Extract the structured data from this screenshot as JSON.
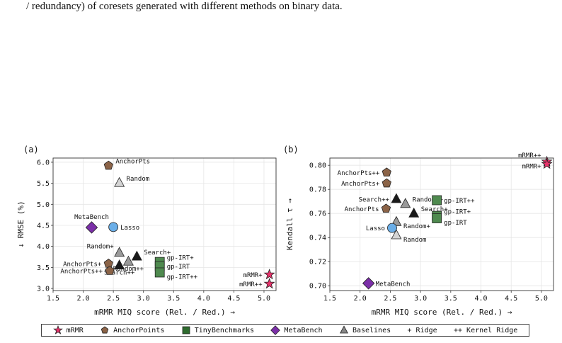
{
  "caption": "/ redundancy) of coresets generated with different methods on binary data.",
  "legend": [
    {
      "label": "mRMR",
      "shape": "star",
      "color": "#e8336b"
    },
    {
      "label": "AnchorPoints",
      "shape": "pentagon",
      "color": "#8b6347"
    },
    {
      "label": "TinyBenchmarks",
      "shape": "square",
      "color": "#2e6b2e"
    },
    {
      "label": "MetaBench",
      "shape": "diamond",
      "color": "#7b2fa8"
    },
    {
      "label": "Baselines",
      "shape": "triangle",
      "color": "#888888"
    },
    {
      "label": "+ Ridge",
      "shape": "none",
      "color": ""
    },
    {
      "label": "++ Kernel Ridge",
      "shape": "none",
      "color": ""
    }
  ],
  "chart_data": [
    {
      "type": "scatter",
      "panel_label": "(a)",
      "xlabel": "mRMR MIQ score (Rel. / Red.) →",
      "ylabel": "↓ RMSE (%)",
      "xlim": [
        1.5,
        5.2
      ],
      "ylim": [
        2.95,
        6.1
      ],
      "xticks": [
        "1.5",
        "2.0",
        "2.5",
        "3.0",
        "3.5",
        "4.0",
        "4.5",
        "5.0"
      ],
      "yticks": [
        "3.0",
        "3.5",
        "4.0",
        "4.5",
        "5.0",
        "5.5",
        "6.0"
      ],
      "grid": true,
      "points": [
        {
          "label": "AnchorPts",
          "x": 2.42,
          "y": 5.92,
          "shape": "pentagon",
          "color": "#8b6347",
          "anchor": "right-up"
        },
        {
          "label": "Random",
          "x": 2.6,
          "y": 5.51,
          "shape": "triangle",
          "color": "#d4d4d4",
          "anchor": "right-up"
        },
        {
          "label": "MetaBench",
          "x": 2.14,
          "y": 4.45,
          "shape": "diamond",
          "color": "#7b2fa8",
          "anchor": "up"
        },
        {
          "label": "Lasso",
          "x": 2.5,
          "y": 4.46,
          "shape": "circle",
          "color": "#6aaee8",
          "anchor": "right"
        },
        {
          "label": "Random+",
          "x": 2.6,
          "y": 3.85,
          "shape": "triangle",
          "color": "#9a9a9a",
          "anchor": "left-up"
        },
        {
          "label": "Search+",
          "x": 2.89,
          "y": 3.76,
          "shape": "triangle",
          "color": "#1a1a1a",
          "anchor": "right-up"
        },
        {
          "label": "Random++",
          "x": 2.75,
          "y": 3.64,
          "shape": "triangle",
          "color": "#9a9a9a",
          "anchor": "below"
        },
        {
          "label": "Search++",
          "x": 2.6,
          "y": 3.55,
          "shape": "triangle",
          "color": "#1a1a1a",
          "anchor": "below"
        },
        {
          "label": "AnchorPts+",
          "x": 2.42,
          "y": 3.59,
          "shape": "pentagon",
          "color": "#8b6347",
          "anchor": "left"
        },
        {
          "label": "AnchorPts++",
          "x": 2.44,
          "y": 3.42,
          "shape": "pentagon",
          "color": "#8b6347",
          "anchor": "left"
        },
        {
          "label": "gp-IRT+",
          "x": 3.27,
          "y": 3.63,
          "shape": "square",
          "color": "#4f8a4f",
          "anchor": "right-up"
        },
        {
          "label": "gp-IRT",
          "x": 3.27,
          "y": 3.53,
          "shape": "square",
          "color": "#4f8a4f",
          "anchor": "right"
        },
        {
          "label": "gp-IRT++",
          "x": 3.27,
          "y": 3.38,
          "shape": "square",
          "color": "#4f8a4f",
          "anchor": "right-down"
        },
        {
          "label": "mRMR+",
          "x": 5.09,
          "y": 3.33,
          "shape": "star",
          "color": "#e8336b",
          "anchor": "left"
        },
        {
          "label": "mRMR++",
          "x": 5.09,
          "y": 3.11,
          "shape": "star",
          "color": "#e8336b",
          "anchor": "left"
        }
      ]
    },
    {
      "type": "scatter",
      "panel_label": "(b)",
      "xlabel": "mRMR MIQ score (Rel. / Red.) →",
      "ylabel": "Kendall τ →",
      "xlim": [
        1.5,
        5.2
      ],
      "ylim": [
        0.696,
        0.806
      ],
      "xticks": [
        "1.5",
        "2.0",
        "2.5",
        "3.0",
        "3.5",
        "4.0",
        "4.5",
        "5.0"
      ],
      "yticks": [
        "0.70",
        "0.72",
        "0.74",
        "0.76",
        "0.78",
        "0.80"
      ],
      "grid": true,
      "points": [
        {
          "label": "mRMR++",
          "x": 5.09,
          "y": 0.803,
          "shape": "star",
          "color": "#e8336b",
          "anchor": "left-up"
        },
        {
          "label": "mRMR+",
          "x": 5.09,
          "y": 0.801,
          "shape": "star",
          "color": "#e8336b",
          "anchor": "left-down"
        },
        {
          "label": "AnchorPts++",
          "x": 2.44,
          "y": 0.794,
          "shape": "pentagon",
          "color": "#8b6347",
          "anchor": "left"
        },
        {
          "label": "AnchorPts+",
          "x": 2.44,
          "y": 0.785,
          "shape": "pentagon",
          "color": "#8b6347",
          "anchor": "left"
        },
        {
          "label": "Search++",
          "x": 2.6,
          "y": 0.772,
          "shape": "triangle",
          "color": "#1a1a1a",
          "anchor": "left"
        },
        {
          "label": "Random++",
          "x": 2.75,
          "y": 0.768,
          "shape": "triangle",
          "color": "#9a9a9a",
          "anchor": "right-up"
        },
        {
          "label": "AnchorPts",
          "x": 2.43,
          "y": 0.764,
          "shape": "pentagon",
          "color": "#8b6347",
          "anchor": "left"
        },
        {
          "label": "Search+",
          "x": 2.89,
          "y": 0.76,
          "shape": "triangle",
          "color": "#1a1a1a",
          "anchor": "right-up"
        },
        {
          "label": "gp-IRT++",
          "x": 3.27,
          "y": 0.771,
          "shape": "square",
          "color": "#4f8a4f",
          "anchor": "right"
        },
        {
          "label": "gp-IRT+",
          "x": 3.27,
          "y": 0.758,
          "shape": "square",
          "color": "#4f8a4f",
          "anchor": "right-up"
        },
        {
          "label": "gp-IRT",
          "x": 3.27,
          "y": 0.756,
          "shape": "square",
          "color": "#4f8a4f",
          "anchor": "right-down"
        },
        {
          "label": "Random+",
          "x": 2.6,
          "y": 0.753,
          "shape": "triangle",
          "color": "#9a9a9a",
          "anchor": "right-down"
        },
        {
          "label": "Lasso",
          "x": 2.53,
          "y": 0.748,
          "shape": "circle",
          "color": "#6aaee8",
          "anchor": "left"
        },
        {
          "label": "Random",
          "x": 2.6,
          "y": 0.742,
          "shape": "triangle",
          "color": "#d4d4d4",
          "anchor": "right-down"
        },
        {
          "label": "MetaBench",
          "x": 2.14,
          "y": 0.702,
          "shape": "diamond",
          "color": "#7b2fa8",
          "anchor": "right"
        }
      ]
    }
  ]
}
